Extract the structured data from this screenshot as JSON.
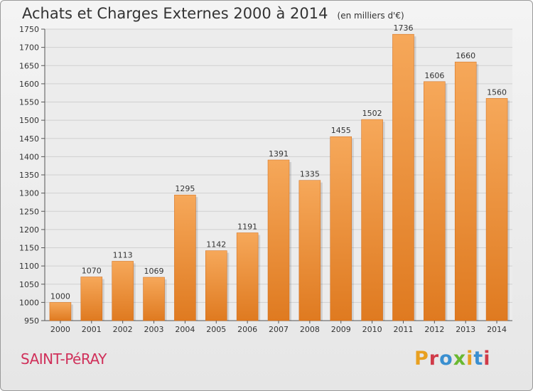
{
  "header": {
    "title": "Achats et Charges Externes 2000 à 2014",
    "subtitle": "(en milliers d'€)"
  },
  "footer": {
    "city": "SAINT-PéRAY",
    "logo_text": "Proxiti"
  },
  "colors": {
    "bar_light": "#f6a85a",
    "bar_dark": "#df7a20",
    "grid": "#d0d0d0",
    "city": "#d0305a",
    "logo_letters": [
      "#e8a020",
      "#d03a48",
      "#3a8fd0",
      "#6ab830",
      "#e8a020",
      "#3a8fd0",
      "#d03a48"
    ]
  },
  "chart_data": {
    "type": "bar",
    "title": "Achats et Charges Externes 2000 à 2014",
    "subtitle": "(en milliers d'€)",
    "categories": [
      "2000",
      "2001",
      "2002",
      "2003",
      "2004",
      "2005",
      "2006",
      "2007",
      "2008",
      "2009",
      "2010",
      "2011",
      "2012",
      "2013",
      "2014"
    ],
    "values": [
      1000,
      1070,
      1113,
      1069,
      1295,
      1142,
      1191,
      1391,
      1335,
      1455,
      1502,
      1736,
      1606,
      1660,
      1560
    ],
    "ylim": [
      950,
      1750
    ],
    "yticks": [
      950,
      1000,
      1050,
      1100,
      1150,
      1200,
      1250,
      1300,
      1350,
      1400,
      1450,
      1500,
      1550,
      1600,
      1650,
      1700,
      1750
    ],
    "grid": true
  }
}
